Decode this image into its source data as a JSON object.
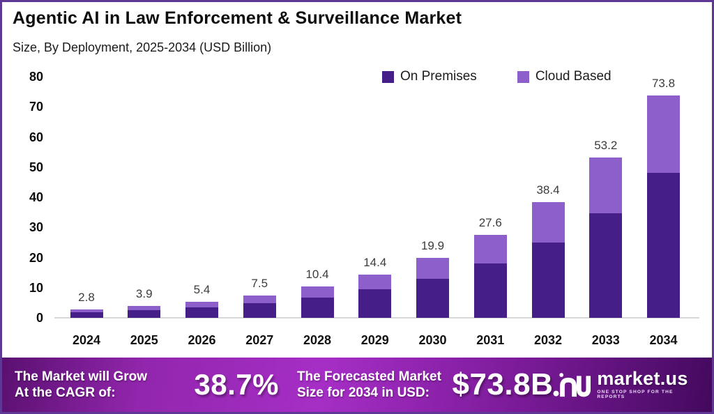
{
  "header": {
    "title": "Agentic AI in Law Enforcement & Surveillance Market",
    "subtitle": "Size, By Deployment, 2025-2034 (USD Billion)"
  },
  "legend": {
    "items": [
      {
        "label": "On Premises",
        "color": "#451e87"
      },
      {
        "label": "Cloud Based",
        "color": "#8c5fcb"
      }
    ]
  },
  "chart_data": {
    "type": "bar",
    "stacked": true,
    "title": "Agentic AI in Law Enforcement & Surveillance Market",
    "subtitle": "Size, By Deployment, 2025-2034 (USD Billion)",
    "categories": [
      "2024",
      "2025",
      "2026",
      "2027",
      "2028",
      "2029",
      "2030",
      "2031",
      "2032",
      "2033",
      "2034"
    ],
    "series": [
      {
        "name": "On Premises",
        "color": "#451e87",
        "values": [
          1.8,
          2.5,
          3.5,
          4.9,
          6.7,
          9.4,
          13.0,
          18.0,
          25.0,
          34.7,
          48.2
        ]
      },
      {
        "name": "Cloud Based",
        "color": "#8c5fcb",
        "values": [
          1.0,
          1.4,
          1.9,
          2.6,
          3.7,
          5.0,
          6.9,
          9.6,
          13.4,
          18.5,
          25.6
        ]
      }
    ],
    "totals": [
      2.8,
      3.9,
      5.4,
      7.5,
      10.4,
      14.4,
      19.9,
      27.6,
      38.4,
      53.2,
      73.8
    ],
    "total_labels": [
      "2.8",
      "3.9",
      "5.4",
      "7.5",
      "10.4",
      "14.4",
      "19.9",
      "27.6",
      "38.4",
      "53.2",
      "73.8"
    ],
    "xlabel": "",
    "ylabel": "USD Billion",
    "ylim": [
      0,
      80
    ],
    "yticks": [
      0,
      10,
      20,
      30,
      40,
      50,
      60,
      70,
      80
    ],
    "grid": false,
    "legend_position": "top-right"
  },
  "banner": {
    "cagr_caption_line1": "The Market will Grow",
    "cagr_caption_line2": "At the CAGR of:",
    "cagr_value": "38.7%",
    "forecast_caption_line1": "The Forecasted Market",
    "forecast_caption_line2": "Size for 2034 in USD:",
    "forecast_value": "$73.8B",
    "logo": {
      "name": "market.us",
      "tagline": "ONE STOP SHOP FOR THE REPORTS"
    },
    "gradient": [
      "#5a1070",
      "#9226ad",
      "#a62ec6",
      "#7c1b9a",
      "#43095e"
    ]
  },
  "colors": {
    "border": "#5f3795",
    "baseline": "#d8d8d8",
    "data_label": "#3c3c3c",
    "axis_text": "#0d0d0d"
  }
}
